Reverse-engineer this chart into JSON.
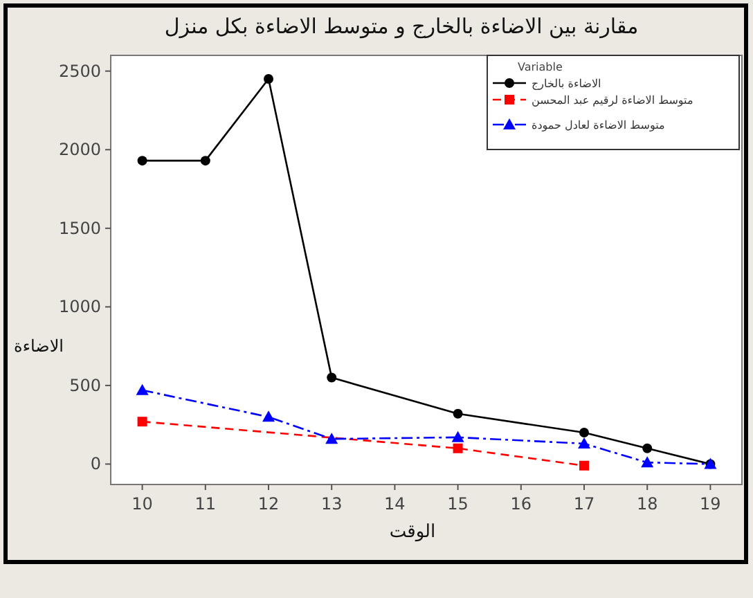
{
  "chart_data": {
    "type": "line",
    "title": "مقارنة بين الاضاءة بالخارج و متوسط الاضاءة بكل منزل",
    "xlabel": "الوقت",
    "ylabel": "الاضاءة",
    "legend_title": "Variable",
    "xlim": [
      9.5,
      19.5
    ],
    "xticks": [
      10,
      11,
      12,
      13,
      14,
      15,
      16,
      17,
      18,
      19
    ],
    "ylim": [
      -130,
      2600
    ],
    "yticks": [
      0,
      500,
      1000,
      1500,
      2000,
      2500
    ],
    "grid": false,
    "legend": "top right",
    "series": [
      {
        "name": "الاضاءة بالخارج",
        "color": "#000000",
        "marker": "circle",
        "line_style": "solid",
        "x": [
          10,
          11,
          12,
          13,
          15,
          17,
          18,
          19
        ],
        "values": [
          1930,
          1930,
          2450,
          550,
          320,
          200,
          100,
          0
        ]
      },
      {
        "name": "متوسط الاضاءة لرقيم عبد المحسن",
        "color": "#ff0000",
        "marker": "square",
        "line_style": "dashed",
        "x": [
          10,
          15,
          17
        ],
        "values": [
          270,
          100,
          -10
        ]
      },
      {
        "name": "متوسط الاضاءة لعادل حمودة",
        "color": "#0000ff",
        "marker": "triangle",
        "line_style": "dashdot",
        "x": [
          10,
          12,
          13,
          15,
          17,
          18,
          19
        ],
        "values": [
          470,
          300,
          160,
          170,
          130,
          10,
          0
        ]
      }
    ]
  }
}
